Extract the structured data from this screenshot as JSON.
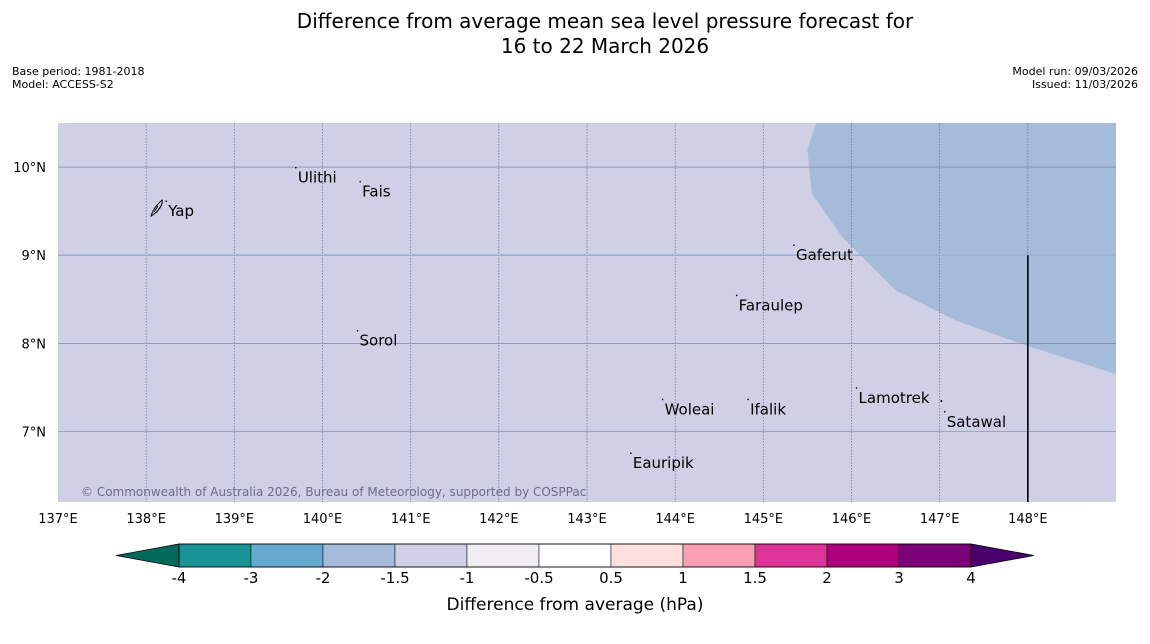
{
  "title": {
    "line1": "Difference from average mean sea level pressure forecast for",
    "line2": "16 to 22 March 2026"
  },
  "meta": {
    "base_period": "Base period: 1981-2018",
    "model": "Model: ACCESS-S2",
    "model_run": "Model run: 09/03/2026",
    "issued": "Issued: 11/03/2026"
  },
  "map": {
    "lon_range": [
      137,
      149
    ],
    "lat_range": [
      6.2,
      10.5
    ],
    "background_color": "#cfd0e6",
    "anomaly_region_color": "#a6bbda",
    "gridline_color": "#6f7a9a",
    "equator_like_line_color": "#9ab1d6",
    "lat_labels": [
      {
        "lat": 10,
        "text": "10°N"
      },
      {
        "lat": 9,
        "text": "9°N"
      },
      {
        "lat": 8,
        "text": "8°N"
      },
      {
        "lat": 7,
        "text": "7°N"
      }
    ],
    "lon_labels": [
      {
        "lon": 137,
        "text": "137°E"
      },
      {
        "lon": 138,
        "text": "138°E"
      },
      {
        "lon": 139,
        "text": "139°E"
      },
      {
        "lon": 140,
        "text": "140°E"
      },
      {
        "lon": 141,
        "text": "141°E"
      },
      {
        "lon": 142,
        "text": "142°E"
      },
      {
        "lon": 143,
        "text": "143°E"
      },
      {
        "lon": 144,
        "text": "144°E"
      },
      {
        "lon": 145,
        "text": "145°E"
      },
      {
        "lon": 146,
        "text": "146°E"
      },
      {
        "lon": 147,
        "text": "147°E"
      },
      {
        "lon": 148,
        "text": "148°E"
      }
    ],
    "places": [
      {
        "name": "Yap",
        "lon": 138.25,
        "lat": 9.5
      },
      {
        "name": "Ulithi",
        "lon": 139.72,
        "lat": 9.88
      },
      {
        "name": "Fais",
        "lon": 140.45,
        "lat": 9.72
      },
      {
        "name": "Gaferut",
        "lon": 145.37,
        "lat": 9.0
      },
      {
        "name": "Faraulep",
        "lon": 144.72,
        "lat": 8.43
      },
      {
        "name": "Sorol",
        "lon": 140.42,
        "lat": 8.03
      },
      {
        "name": "Lamotrek",
        "lon": 146.08,
        "lat": 7.38
      },
      {
        "name": "Satawal",
        "lon": 147.08,
        "lat": 7.11
      },
      {
        "name": "Woleai",
        "lon": 143.88,
        "lat": 7.25
      },
      {
        "name": "Ifalik",
        "lon": 144.85,
        "lat": 7.25
      },
      {
        "name": "Eauripik",
        "lon": 143.52,
        "lat": 6.64
      }
    ],
    "copyright": "© Commonwealth of Australia 2026, Bureau of Meteorology, supported by COSPPac"
  },
  "colorbar": {
    "label": "Difference from average (hPa)",
    "ticks": [
      "-4",
      "-3",
      "-2",
      "-1.5",
      "-1",
      "-0.5",
      "0.5",
      "1",
      "1.5",
      "2",
      "3",
      "4"
    ],
    "colors": [
      "#1a9396",
      "#67a9cf",
      "#a6bbda",
      "#cfd0e6",
      "#f1eef3",
      "#ffffff",
      "#fde0dd",
      "#fa9fb5",
      "#dd3497",
      "#ae017e",
      "#7a0177"
    ],
    "low_extend_color": "#036b5c",
    "high_extend_color": "#49006a"
  }
}
